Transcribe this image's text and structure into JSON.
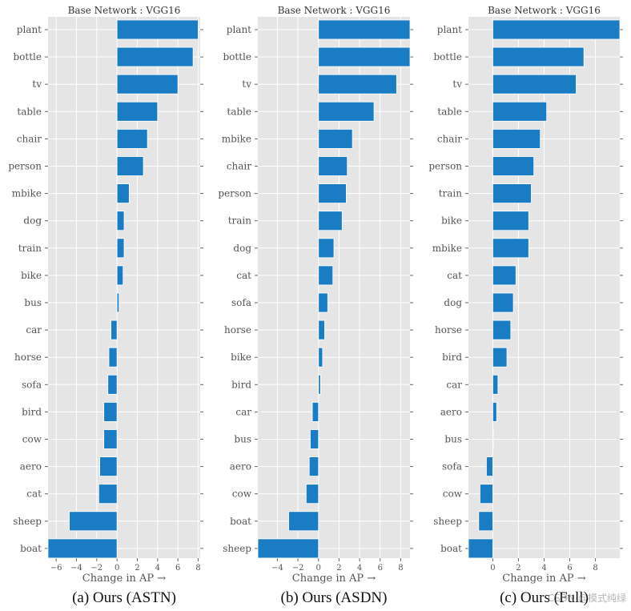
{
  "colors": {
    "bar": "#1a7dc4",
    "panel_bg": "#e5e5e5",
    "grid": "#ffffff",
    "text": "#555555",
    "caption": "#111111"
  },
  "watermark": "CSDN @模式纯绿",
  "chart_data": [
    {
      "type": "bar",
      "orientation": "horizontal",
      "title": "Base Network :  VGG16",
      "xlabel": "Change in AP  →",
      "caption": "(a) Ours (ASTN)",
      "xlim": [
        -6.8,
        8.2
      ],
      "xticks": [
        -6,
        -4,
        -2,
        0,
        2,
        4,
        6,
        8
      ],
      "xtick_labels": [
        "−6",
        "−4",
        "−2",
        "0",
        "2",
        "4",
        "6",
        "8"
      ],
      "categories": [
        "plant",
        "bottle",
        "tv",
        "table",
        "chair",
        "person",
        "mbike",
        "dog",
        "train",
        "bike",
        "bus",
        "car",
        "horse",
        "sofa",
        "bird",
        "cow",
        "aero",
        "cat",
        "sheep",
        "boat"
      ],
      "values": [
        8.0,
        7.5,
        6.0,
        4.0,
        3.0,
        2.6,
        1.2,
        0.7,
        0.7,
        0.6,
        0.2,
        -0.6,
        -0.8,
        -0.9,
        -1.3,
        -1.3,
        -1.7,
        -1.8,
        -4.7,
        -6.8
      ]
    },
    {
      "type": "bar",
      "orientation": "horizontal",
      "title": "Base Network :  VGG16",
      "xlabel": "Change in AP  →",
      "caption": "(b) Ours (ASDN)",
      "xlim": [
        -5.9,
        8.9
      ],
      "xticks": [
        -4,
        -2,
        0,
        2,
        4,
        6,
        8
      ],
      "xtick_labels": [
        "−4",
        "−2",
        "0",
        "2",
        "4",
        "6",
        "8"
      ],
      "categories": [
        "plant",
        "bottle",
        "tv",
        "table",
        "mbike",
        "chair",
        "person",
        "train",
        "dog",
        "cat",
        "sofa",
        "horse",
        "bike",
        "bird",
        "car",
        "bus",
        "aero",
        "cow",
        "boat",
        "sheep"
      ],
      "values": [
        8.9,
        8.9,
        7.6,
        5.4,
        3.3,
        2.8,
        2.7,
        2.3,
        1.5,
        1.4,
        0.9,
        0.6,
        0.4,
        0.2,
        -0.6,
        -0.8,
        -0.9,
        -1.2,
        -2.9,
        -5.9
      ]
    },
    {
      "type": "bar",
      "orientation": "horizontal",
      "title": "Base Network :  VGG16",
      "xlabel": "Change in AP  →",
      "caption": "(c) Ours (Full)",
      "xlim": [
        -1.9,
        9.9
      ],
      "xticks": [
        0,
        2,
        4,
        6,
        8
      ],
      "xtick_labels": [
        "0",
        "2",
        "4",
        "6",
        "8"
      ],
      "categories": [
        "plant",
        "bottle",
        "tv",
        "table",
        "chair",
        "person",
        "train",
        "bike",
        "mbike",
        "cat",
        "dog",
        "horse",
        "bird",
        "car",
        "aero",
        "bus",
        "sofa",
        "cow",
        "sheep",
        "boat"
      ],
      "values": [
        9.9,
        7.1,
        6.5,
        4.2,
        3.7,
        3.2,
        3.0,
        2.8,
        2.8,
        1.8,
        1.6,
        1.4,
        1.1,
        0.4,
        0.3,
        0.0,
        -0.5,
        -1.0,
        -1.1,
        -1.9
      ]
    }
  ]
}
